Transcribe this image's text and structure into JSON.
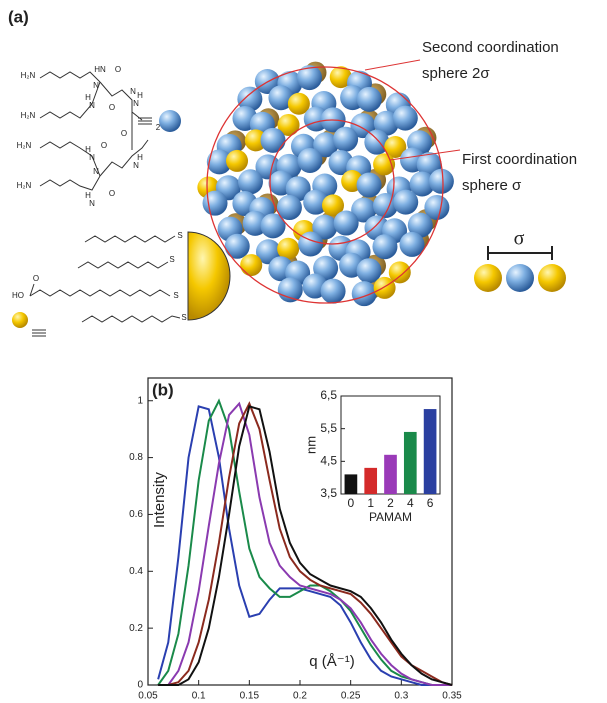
{
  "panel_a": {
    "label": "(a)",
    "second_sphere": [
      "Second coordination",
      "sphere 2σ"
    ],
    "first_sphere": [
      "First coordination",
      "sphere σ"
    ],
    "sigma": "σ",
    "molecule_labels": [
      "H₂N",
      "HN",
      "O",
      "H₂N",
      "H",
      "N",
      "O",
      "N",
      "O",
      "N",
      "H",
      "N",
      "2",
      "H₂N",
      "H",
      "N",
      "O",
      "N",
      "H₂N",
      "H",
      "N",
      "O",
      "H",
      "N",
      "S",
      "S",
      "S",
      "S",
      "O",
      "HO"
    ]
  },
  "chart_data": [
    {
      "type": "line",
      "label": "(b)",
      "x_label": "q (Å⁻¹)",
      "y_label": "Intensity",
      "x": [
        0.06,
        0.07,
        0.08,
        0.09,
        0.1,
        0.11,
        0.12,
        0.13,
        0.14,
        0.15,
        0.16,
        0.17,
        0.18,
        0.19,
        0.2,
        0.21,
        0.22,
        0.23,
        0.24,
        0.25,
        0.26,
        0.27,
        0.28,
        0.29,
        0.3,
        0.31,
        0.32,
        0.33,
        0.34,
        0.35
      ],
      "series": [
        {
          "color": "#2a3fb0",
          "values": [
            0.02,
            0.15,
            0.45,
            0.8,
            0.98,
            0.97,
            0.8,
            0.55,
            0.35,
            0.24,
            0.25,
            0.3,
            0.34,
            0.34,
            0.34,
            0.33,
            0.32,
            0.31,
            0.28,
            0.22,
            0.15,
            0.09,
            0.05,
            0.03,
            0.02,
            0.01,
            0,
            0,
            0,
            0
          ]
        },
        {
          "color": "#1a8a4a",
          "values": [
            0,
            0.05,
            0.18,
            0.42,
            0.72,
            0.93,
            1.0,
            0.9,
            0.68,
            0.48,
            0.38,
            0.34,
            0.31,
            0.31,
            0.33,
            0.35,
            0.35,
            0.33,
            0.3,
            0.26,
            0.2,
            0.14,
            0.09,
            0.05,
            0.03,
            0.02,
            0.01,
            0,
            0,
            0
          ]
        },
        {
          "color": "#8a3ab0",
          "values": [
            0,
            0,
            0.05,
            0.15,
            0.33,
            0.56,
            0.78,
            0.95,
            0.99,
            0.88,
            0.66,
            0.5,
            0.42,
            0.38,
            0.35,
            0.34,
            0.33,
            0.32,
            0.3,
            0.27,
            0.22,
            0.16,
            0.11,
            0.07,
            0.04,
            0.02,
            0.01,
            0,
            0,
            0
          ]
        },
        {
          "color": "#8b2a1e",
          "values": [
            0,
            0,
            0.01,
            0.05,
            0.15,
            0.3,
            0.5,
            0.73,
            0.92,
            0.99,
            0.9,
            0.72,
            0.55,
            0.45,
            0.4,
            0.37,
            0.35,
            0.34,
            0.33,
            0.32,
            0.29,
            0.25,
            0.2,
            0.15,
            0.1,
            0.07,
            0.05,
            0.03,
            0.01,
            0
          ]
        },
        {
          "color": "#111111",
          "values": [
            0,
            0,
            0,
            0.02,
            0.08,
            0.2,
            0.38,
            0.6,
            0.84,
            0.98,
            0.97,
            0.82,
            0.62,
            0.5,
            0.43,
            0.39,
            0.37,
            0.35,
            0.34,
            0.33,
            0.31,
            0.27,
            0.22,
            0.16,
            0.11,
            0.07,
            0.04,
            0.02,
            0.01,
            0
          ]
        }
      ],
      "xlim": [
        0.05,
        0.35
      ],
      "xticks": [
        0.05,
        0.1,
        0.15,
        0.2,
        0.25,
        0.3,
        0.35
      ],
      "ylim": [
        0,
        1.08
      ],
      "yticks": [
        0,
        0.2,
        0.4,
        0.6,
        0.8,
        1
      ]
    },
    {
      "type": "bar",
      "x_label": "PAMAM",
      "y_label": "nm",
      "categories": [
        "0",
        "1",
        "2",
        "4",
        "6"
      ],
      "values": [
        4.1,
        4.3,
        4.7,
        5.4,
        6.1
      ],
      "colors": [
        "#111111",
        "#d42a2a",
        "#9a3ab8",
        "#1a8a4a",
        "#2a3fa0"
      ],
      "ylim": [
        3.5,
        6.5
      ],
      "yticks": [
        {
          "value": 3.5,
          "label": "3,5"
        },
        {
          "value": 4.5,
          "label": "4,5"
        },
        {
          "value": 5.5,
          "label": "5,5"
        },
        {
          "value": 6.5,
          "label": "6,5"
        }
      ]
    }
  ]
}
